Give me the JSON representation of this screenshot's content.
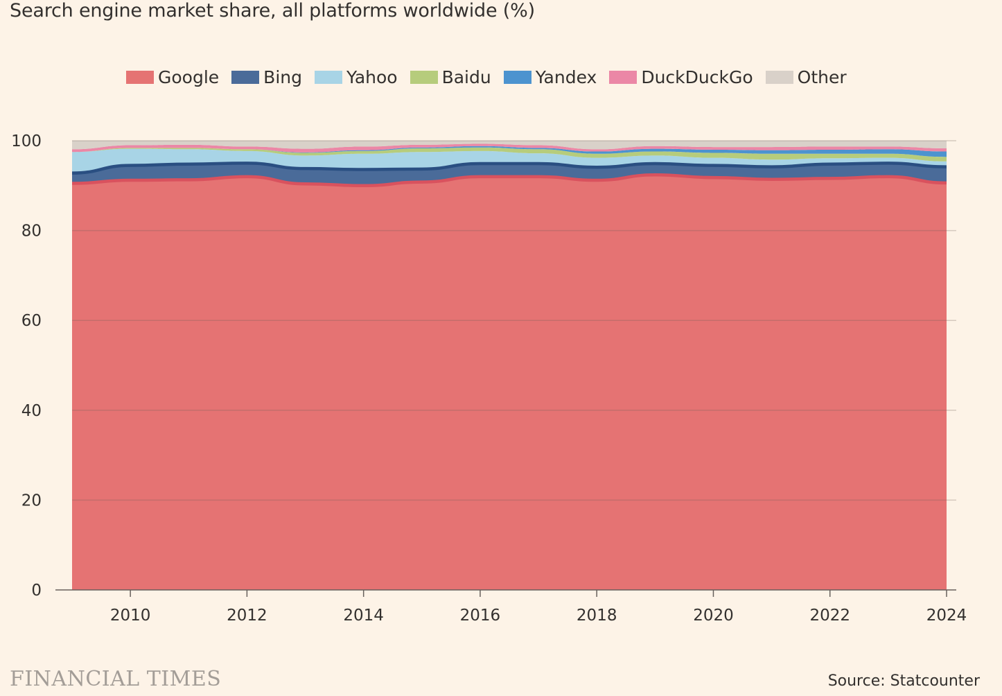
{
  "header": {
    "title": "Search engine market share, all platforms worldwide (%)"
  },
  "footer": {
    "logo": "FINANCIAL TIMES",
    "source": "Source: Statcounter"
  },
  "chart_data": {
    "type": "area",
    "stacked": true,
    "title": "Search engine market share, all platforms worldwide (%)",
    "xlabel": "",
    "ylabel": "",
    "ylim": [
      0,
      100
    ],
    "yticks": [
      0,
      20,
      40,
      60,
      80,
      100
    ],
    "xticks": [
      2010,
      2012,
      2014,
      2016,
      2018,
      2020,
      2022,
      2024
    ],
    "xlim": [
      2009,
      2024
    ],
    "grid": true,
    "legend": "top",
    "x": [
      2009,
      2010,
      2011,
      2012,
      2013,
      2014,
      2015,
      2016,
      2017,
      2018,
      2019,
      2020,
      2021,
      2022,
      2023,
      2024
    ],
    "series": [
      {
        "name": "Google",
        "color": "#e57373",
        "line_color": "#d9525e",
        "values": [
          90.5,
          91.2,
          91.3,
          92.0,
          90.4,
          90.0,
          90.8,
          92.0,
          92.0,
          91.2,
          92.4,
          91.8,
          91.4,
          91.6,
          92.0,
          90.6
        ]
      },
      {
        "name": "Bing",
        "color": "#4a6b99",
        "line_color": "#2a4f82",
        "values": [
          2.3,
          3.3,
          3.5,
          3.0,
          3.4,
          3.6,
          2.9,
          2.9,
          2.9,
          2.9,
          2.5,
          2.7,
          2.8,
          3.2,
          3.0,
          3.6
        ]
      },
      {
        "name": "Yahoo",
        "color": "#a8d4e6",
        "line_color": "#a8d4e6",
        "values": [
          4.7,
          3.7,
          3.3,
          2.7,
          2.9,
          3.5,
          3.8,
          2.8,
          2.3,
          2.1,
          1.8,
          1.7,
          1.6,
          1.3,
          1.2,
          1.2
        ]
      },
      {
        "name": "Baidu",
        "color": "#b6cc7c",
        "line_color": "#b6cc7c",
        "values": [
          0.0,
          0.2,
          0.3,
          0.4,
          0.6,
          0.6,
          0.8,
          0.8,
          0.9,
          0.9,
          0.9,
          1.1,
          1.3,
          1.0,
          0.9,
          1.0
        ]
      },
      {
        "name": "Yandex",
        "color": "#4c93cf",
        "line_color": "#4c93cf",
        "values": [
          0.0,
          0.0,
          0.0,
          0.0,
          0.1,
          0.2,
          0.2,
          0.3,
          0.3,
          0.5,
          0.6,
          0.7,
          0.8,
          0.9,
          1.0,
          1.2
        ]
      },
      {
        "name": "DuckDuckGo",
        "color": "#eb87a6",
        "line_color": "#eb87a6",
        "values": [
          0.6,
          0.6,
          0.7,
          0.6,
          0.8,
          0.8,
          0.6,
          0.5,
          0.6,
          0.5,
          0.6,
          0.6,
          0.7,
          0.7,
          0.6,
          0.7
        ]
      },
      {
        "name": "Other",
        "color": "#d9d1c9",
        "line_color": "#d9d1c9",
        "values": [
          1.9,
          1.0,
          0.9,
          1.3,
          1.8,
          1.3,
          0.9,
          0.7,
          1.0,
          1.9,
          1.2,
          1.4,
          1.4,
          1.3,
          1.3,
          1.7
        ]
      }
    ]
  }
}
